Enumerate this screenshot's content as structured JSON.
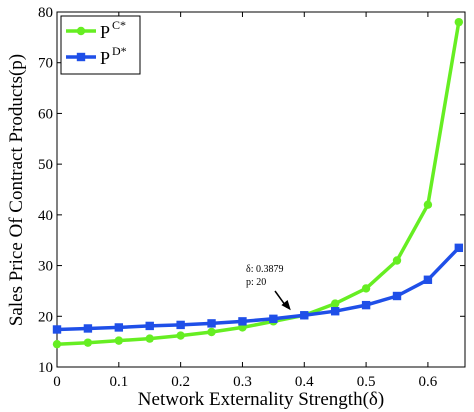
{
  "chart_data": {
    "type": "line",
    "xlabel": "Network Externality Strength(δ)",
    "ylabel": "Sales Price Of Contract Products(p)",
    "xlim": [
      0,
      0.66
    ],
    "ylim": [
      10,
      80
    ],
    "xticks": [
      "0",
      "0.1",
      "0.2",
      "0.3",
      "0.4",
      "0.5",
      "0.6"
    ],
    "xtick_values": [
      0,
      0.1,
      0.2,
      0.3,
      0.4,
      0.5,
      0.6
    ],
    "yticks": [
      "10",
      "20",
      "30",
      "40",
      "50",
      "60",
      "70",
      "80"
    ],
    "ytick_values": [
      10,
      20,
      30,
      40,
      50,
      60,
      70,
      80
    ],
    "grid": false,
    "legend_position": "top-left",
    "x": [
      0,
      0.05,
      0.1,
      0.15,
      0.2,
      0.25,
      0.3,
      0.35,
      0.4,
      0.45,
      0.5,
      0.55,
      0.6,
      0.65
    ],
    "series": [
      {
        "name_base": "P",
        "name_sup": "C*",
        "color": "#66ee22",
        "marker": "circle",
        "values": [
          14.5,
          14.8,
          15.2,
          15.6,
          16.2,
          16.9,
          17.8,
          19.0,
          20.2,
          22.5,
          25.5,
          31.0,
          42.0,
          78.0
        ]
      },
      {
        "name_base": "P",
        "name_sup": "D*",
        "color": "#1f4fe8",
        "marker": "square",
        "values": [
          17.4,
          17.6,
          17.8,
          18.1,
          18.3,
          18.6,
          19.0,
          19.5,
          20.2,
          21.0,
          22.2,
          24.0,
          27.2,
          33.5
        ]
      }
    ],
    "annotation": {
      "line1": "δ: 0.3879",
      "line2": "p:  20",
      "x": 0.3879,
      "y": 20
    }
  }
}
